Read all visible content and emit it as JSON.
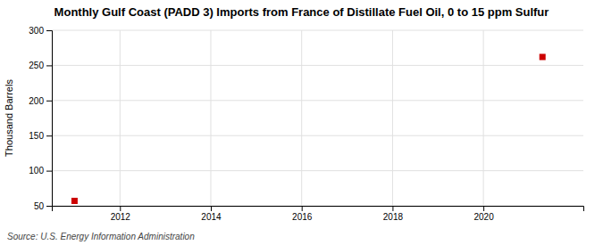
{
  "chart_data": {
    "type": "scatter",
    "title": "Monthly Gulf Coast (PADD 3) Imports from France of Distillate Fuel Oil, 0 to 15 ppm Sulfur",
    "ylabel": "Thousand Barrels",
    "source": "Source: U.S. Energy Information Administration",
    "x": [
      2011.0,
      2021.3
    ],
    "values": [
      57,
      262
    ],
    "color": "#cc0000",
    "marker": "square",
    "xlim": [
      2010.5,
      2022.2
    ],
    "ylim": [
      50,
      300
    ],
    "xticks": [
      2012,
      2014,
      2016,
      2018,
      2020
    ],
    "yticks": [
      50,
      100,
      150,
      200,
      250,
      300
    ],
    "grid": true
  }
}
